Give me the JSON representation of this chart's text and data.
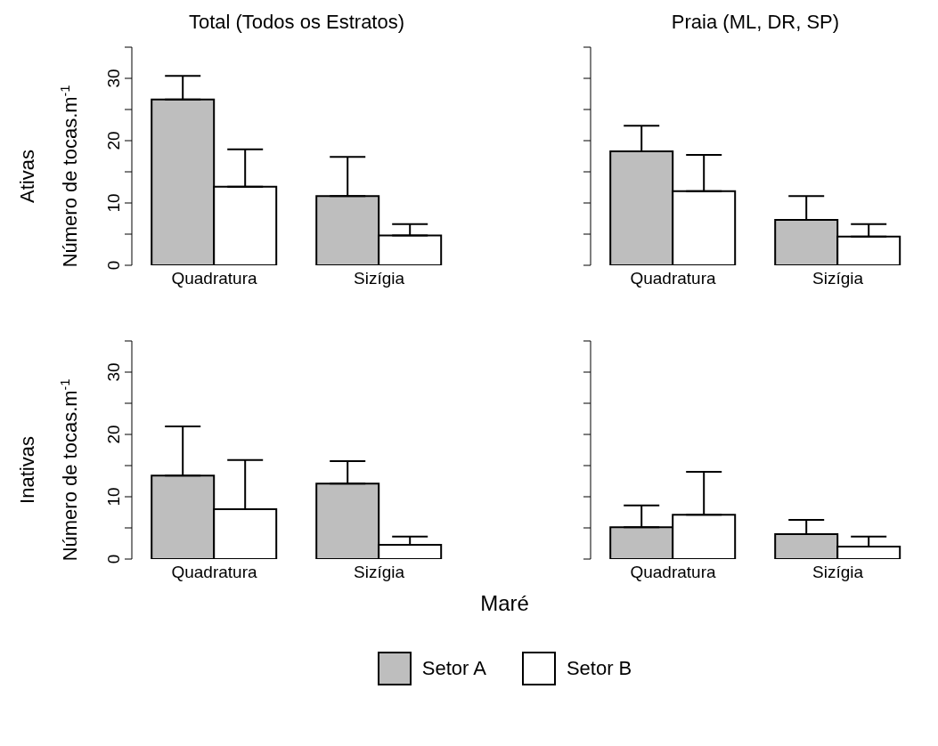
{
  "chart_data": [
    {
      "type": "bar",
      "title": "Total (Todos os Estratos)",
      "ylabel": "Número de tocas.m$^{-1}$",
      "annotations": [
        "Ativas"
      ],
      "categories": [
        "Quadratura",
        "Sizígia"
      ],
      "ylim": [
        0,
        35
      ],
      "yticks": [
        0,
        {
          "value": 5,
          "label": null
        },
        10,
        {
          "value": 15,
          "label": null
        },
        20,
        {
          "value": 25,
          "label": null
        },
        30,
        {
          "value": 35,
          "label": null
        }
      ],
      "legend": "bottom",
      "series": [
        {
          "name": "Setor A",
          "color": "#bebebe",
          "values": [
            26.6,
            11.1
          ],
          "errors": [
            [
              26.6,
              30.4
            ],
            [
              11.1,
              17.4
            ]
          ]
        },
        {
          "name": "Setor B",
          "color": "#ffffff",
          "values": [
            12.6,
            4.8
          ],
          "errors": [
            [
              12.6,
              18.6
            ],
            [
              4.8,
              6.6
            ]
          ]
        }
      ]
    },
    {
      "type": "bar",
      "title": "Praia (ML, DR, SP)",
      "categories": [
        "Quadratura",
        "Sizígia"
      ],
      "ylim": [
        0,
        35
      ],
      "yticks": [
        0,
        5,
        10,
        15,
        20,
        25,
        30,
        35
      ],
      "tick_labels": "x",
      "series": [
        {
          "color": "#bebebe",
          "values": [
            18.3,
            7.3
          ],
          "errors": [
            [
              18.3,
              22.4
            ],
            [
              7.3,
              11.1
            ]
          ]
        },
        {
          "color": "#ffffff",
          "values": [
            11.9,
            4.6
          ],
          "errors": [
            [
              11.9,
              17.7
            ],
            [
              4.6,
              6.6
            ]
          ]
        }
      ]
    },
    {
      "type": "bar",
      "ylabel": "Número de tocas.m$^{-1}$",
      "annotations": [
        "Inativas",
        "Maré"
      ],
      "categories": [
        "Quadratura",
        "Sizígia"
      ],
      "ylim": [
        0,
        35
      ],
      "yticks": [
        0,
        {
          "value": 5,
          "label": null
        },
        10,
        {
          "value": 15,
          "label": null
        },
        20,
        {
          "value": 25,
          "label": null
        },
        30,
        {
          "value": 35,
          "label": null
        }
      ],
      "series": [
        {
          "color": "#bebebe",
          "values": [
            13.4,
            12.1
          ],
          "errors": [
            [
              13.4,
              21.3
            ],
            [
              12.1,
              15.7
            ]
          ]
        },
        {
          "color": "#ffffff",
          "values": [
            8.0,
            2.3
          ],
          "errors": [
            [
              8.0,
              15.9
            ],
            [
              2.3,
              3.6
            ]
          ]
        }
      ]
    },
    {
      "type": "bar",
      "categories": [
        "Quadratura",
        "Sizígia"
      ],
      "ylim": [
        0,
        35
      ],
      "yticks": [
        0,
        5,
        10,
        15,
        20,
        25,
        30,
        35
      ],
      "tick_labels": "x",
      "series": [
        {
          "color": "#bebebe",
          "values": [
            5.1,
            4.0
          ],
          "errors": [
            [
              5.1,
              8.6
            ],
            [
              4.0,
              6.3
            ]
          ]
        },
        {
          "color": "#ffffff",
          "values": [
            7.1,
            2.0
          ],
          "errors": [
            [
              7.1,
              14.0
            ],
            [
              2.0,
              3.6
            ]
          ]
        }
      ]
    }
  ]
}
